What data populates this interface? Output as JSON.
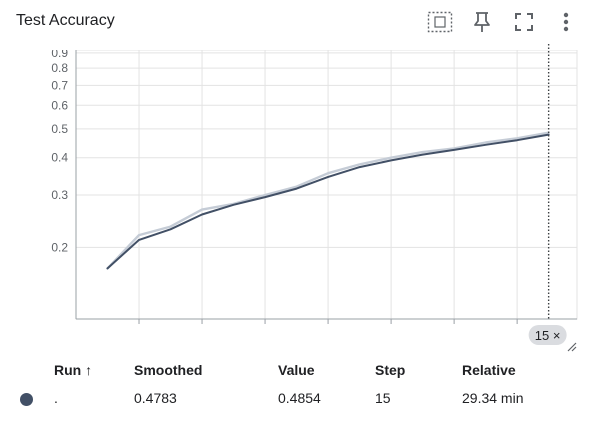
{
  "title": "Test Accuracy",
  "toolbar": {
    "icons": [
      "fit-domain-icon",
      "pin-icon",
      "fullscreen-icon",
      "more-vert-icon"
    ]
  },
  "chart_data": {
    "type": "line",
    "title": "Test Accuracy",
    "xlabel": "",
    "ylabel": "",
    "yscale": "log",
    "xlim": [
      0,
      15.9
    ],
    "ylim": [
      0.115,
      0.92
    ],
    "x_ticks": [
      2,
      4,
      6,
      8,
      10,
      12,
      14
    ],
    "y_ticks": [
      0.2,
      0.3,
      0.4,
      0.5,
      0.6,
      0.7,
      0.8,
      0.9
    ],
    "y_tick_labels": [
      "0.2",
      "0.3",
      "0.4",
      "0.5",
      "0.6",
      "0.7",
      "0.8",
      "0.9"
    ],
    "grid": true,
    "hover_step_label": "15 ×",
    "hover_step": 15,
    "series": [
      {
        "name": "",
        "role": "value",
        "color": "#c5ccd6",
        "x": [
          1,
          2,
          3,
          4,
          5,
          6,
          7,
          8,
          9,
          10,
          11,
          12,
          13,
          14,
          15
        ],
        "y": [
          0.17,
          0.22,
          0.235,
          0.268,
          0.28,
          0.3,
          0.32,
          0.355,
          0.38,
          0.4,
          0.418,
          0.43,
          0.45,
          0.465,
          0.4854
        ]
      },
      {
        "name": "",
        "role": "smoothed",
        "color": "#425066",
        "x": [
          1,
          2,
          3,
          4,
          5,
          6,
          7,
          8,
          9,
          10,
          11,
          12,
          13,
          14,
          15
        ],
        "y": [
          0.17,
          0.212,
          0.23,
          0.258,
          0.278,
          0.295,
          0.315,
          0.345,
          0.372,
          0.392,
          0.41,
          0.425,
          0.442,
          0.458,
          0.4783
        ]
      }
    ]
  },
  "table": {
    "headers": {
      "run": "Run ↑",
      "smoothed": "Smoothed",
      "value": "Value",
      "step": "Step",
      "relative": "Relative"
    },
    "rows": [
      {
        "color": "#425066",
        "run": ".",
        "smoothed": "0.4783",
        "value": "0.4854",
        "step": "15",
        "relative": "29.34 min"
      }
    ]
  }
}
